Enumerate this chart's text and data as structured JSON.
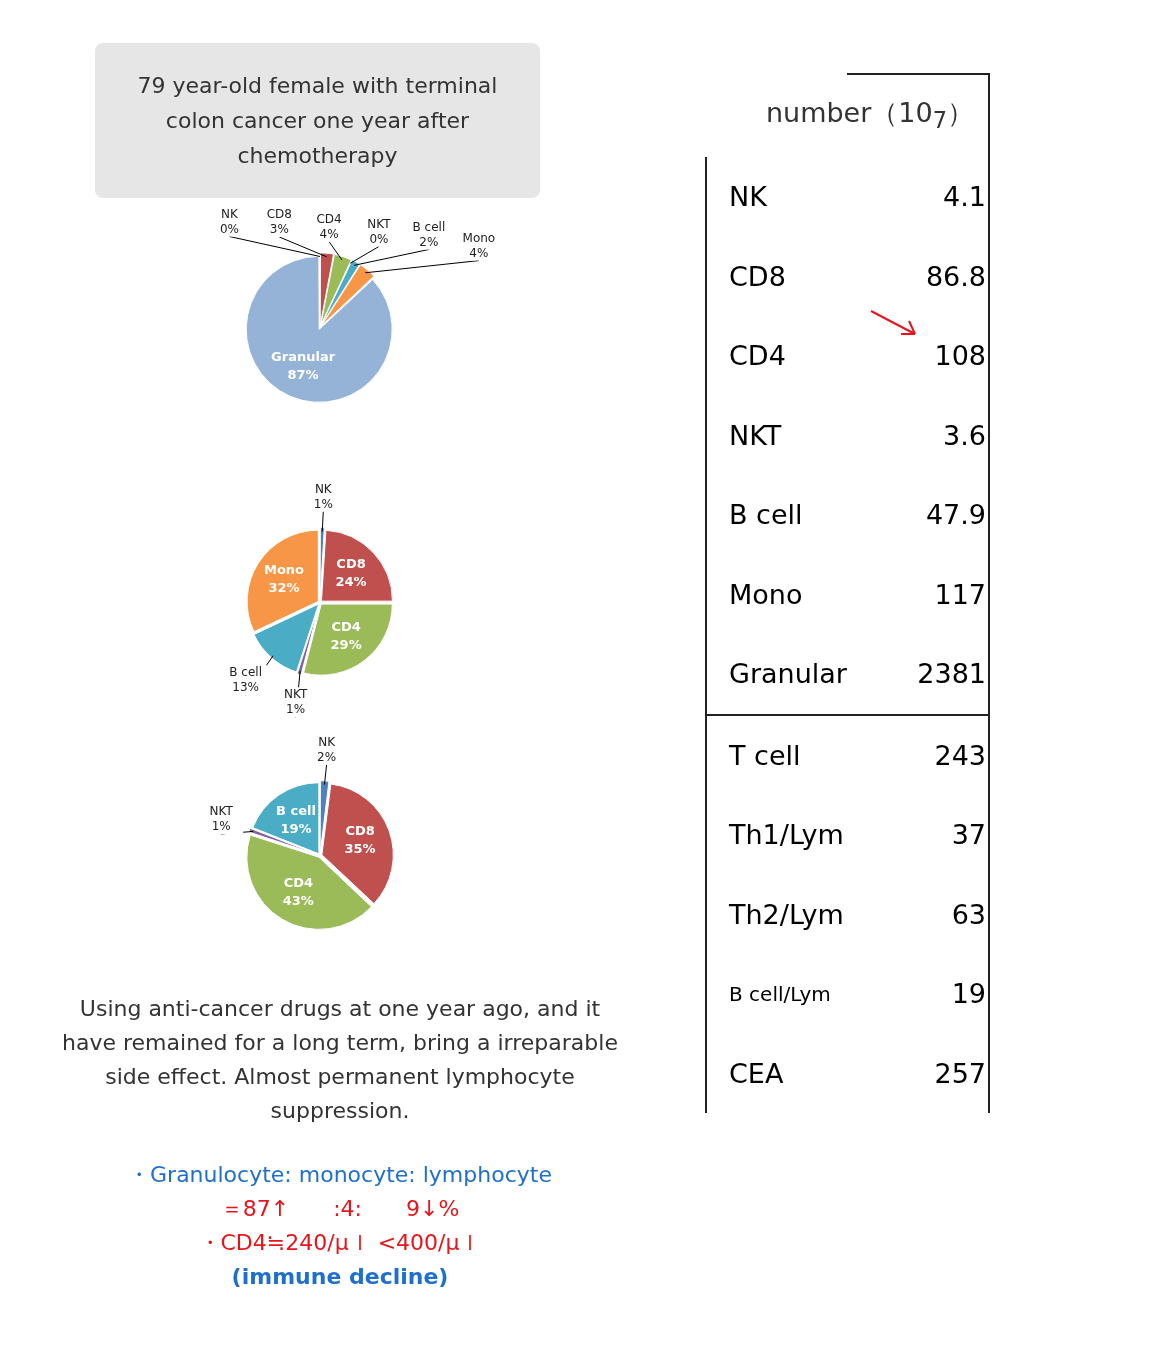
{
  "chart_data": [
    {
      "type": "pie",
      "title": "79 year-old female with terminal colon cancer one year after chemotherapy",
      "categories": [
        "NK",
        "CD8",
        "CD4",
        "NKT",
        "B cell",
        "Mono",
        "Granular"
      ],
      "values": [
        0,
        3,
        4,
        0,
        2,
        4,
        87
      ],
      "value_labels": [
        "0%",
        "3%",
        "4%",
        "0%",
        "2%",
        "4%",
        "87%"
      ],
      "colors": [
        "#4f81bd",
        "#c0504d",
        "#9bbb59",
        "#8064a2",
        "#4bacc6",
        "#f79646",
        "#95b3d7"
      ]
    },
    {
      "type": "pie",
      "categories": [
        "NK",
        "CD8",
        "CD4",
        "NKT",
        "B cell",
        "Mono"
      ],
      "values": [
        1,
        24,
        29,
        1,
        13,
        32
      ],
      "value_labels": [
        "1%",
        "24%",
        "29%",
        "1%",
        "13%",
        "32%"
      ],
      "colors": [
        "#4f81bd",
        "#c0504d",
        "#9bbb59",
        "#8064a2",
        "#4bacc6",
        "#f79646"
      ]
    },
    {
      "type": "pie",
      "categories": [
        "NK",
        "CD8",
        "CD4",
        "NKT",
        "B cell"
      ],
      "values": [
        2,
        35,
        43,
        1,
        19
      ],
      "value_labels": [
        "2%",
        "35%",
        "43%",
        "1%",
        "19%"
      ],
      "colors": [
        "#4f81bd",
        "#c0504d",
        "#9bbb59",
        "#8064a2",
        "#4bacc6"
      ],
      "annotations": [
        "Using anti-cancer drugs at one year ago, and it have remained for a long term,  bring a irreparable side effect. Almost permanent lymphocyte suppression.",
        "・Granulocyte: monocyte: lymphocyte",
        "＝87↑　　:4:　　9↓%",
        "・CD4≒240/μｌ <400/μｌ",
        "(immune decline)"
      ]
    },
    {
      "type": "other",
      "title": "number（10$_{7}$）",
      "categories": [
        "NK",
        "CD8",
        "CD4",
        "NKT",
        "B cell",
        "Mono",
        "Granular",
        "T cell",
        "Th1/Lym",
        "Th2/Lym",
        "B cell/Lym",
        "CEA"
      ],
      "values": [
        4.1,
        86.8,
        108,
        3.6,
        47.9,
        117,
        2381,
        243,
        37,
        63,
        19,
        257
      ],
      "data_labels": true
    }
  ]
}
